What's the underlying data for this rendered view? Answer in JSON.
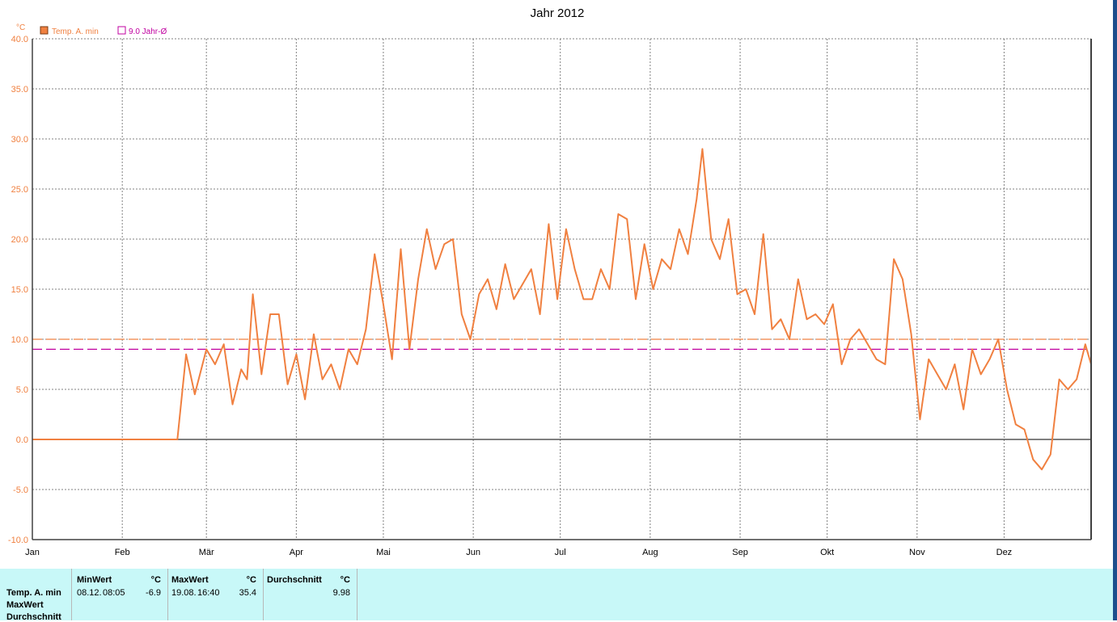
{
  "chart_data": {
    "type": "line",
    "title": "Jahr 2012",
    "ylabel": "°C",
    "ylim": [
      -10,
      40
    ],
    "yticks": [
      "-10.0",
      "-5.0",
      "0.0",
      "5.0",
      "10.0",
      "15.0",
      "20.0",
      "25.0",
      "30.0",
      "35.0",
      "40.0"
    ],
    "xlim": [
      "2012-01-01",
      "2012-12-31"
    ],
    "xticks": [
      "Jan",
      "Feb",
      "Mär",
      "Apr",
      "Mai",
      "Jun",
      "Jul",
      "Aug",
      "Sep",
      "Okt",
      "Nov",
      "Dez"
    ],
    "grid": true,
    "legend_position": "top-left",
    "legend": [
      {
        "label": "Temp. A. min",
        "color": "#f08040"
      },
      {
        "label": "9.0 Jahr-Ø",
        "color": "#c000a0"
      }
    ],
    "reference_lines": [
      {
        "value": 10.0,
        "color": "#f08040",
        "style": "dashed"
      },
      {
        "value": 9.0,
        "color": "#c000a0",
        "style": "dashed"
      }
    ],
    "series": [
      {
        "name": "Temp. A. min",
        "color": "#f08040",
        "x": [
          "2012-01-01",
          "2012-02-01",
          "2012-02-20",
          "2012-02-23",
          "2012-02-26",
          "2012-03-01",
          "2012-03-04",
          "2012-03-07",
          "2012-03-10",
          "2012-03-13",
          "2012-03-15",
          "2012-03-17",
          "2012-03-20",
          "2012-03-23",
          "2012-03-26",
          "2012-03-29",
          "2012-04-01",
          "2012-04-04",
          "2012-04-07",
          "2012-04-10",
          "2012-04-13",
          "2012-04-16",
          "2012-04-19",
          "2012-04-22",
          "2012-04-25",
          "2012-04-28",
          "2012-05-01",
          "2012-05-04",
          "2012-05-07",
          "2012-05-10",
          "2012-05-13",
          "2012-05-16",
          "2012-05-19",
          "2012-05-22",
          "2012-05-25",
          "2012-05-28",
          "2012-05-31",
          "2012-06-03",
          "2012-06-06",
          "2012-06-09",
          "2012-06-12",
          "2012-06-15",
          "2012-06-18",
          "2012-06-21",
          "2012-06-24",
          "2012-06-27",
          "2012-06-30",
          "2012-07-03",
          "2012-07-06",
          "2012-07-09",
          "2012-07-12",
          "2012-07-15",
          "2012-07-18",
          "2012-07-21",
          "2012-07-24",
          "2012-07-27",
          "2012-07-30",
          "2012-08-02",
          "2012-08-05",
          "2012-08-08",
          "2012-08-11",
          "2012-08-14",
          "2012-08-17",
          "2012-08-19",
          "2012-08-22",
          "2012-08-25",
          "2012-08-28",
          "2012-08-31",
          "2012-09-03",
          "2012-09-06",
          "2012-09-09",
          "2012-09-12",
          "2012-09-15",
          "2012-09-18",
          "2012-09-21",
          "2012-09-24",
          "2012-09-27",
          "2012-09-30",
          "2012-10-03",
          "2012-10-06",
          "2012-10-09",
          "2012-10-12",
          "2012-10-15",
          "2012-10-18",
          "2012-10-21",
          "2012-10-24",
          "2012-10-27",
          "2012-10-30",
          "2012-11-02",
          "2012-11-05",
          "2012-11-08",
          "2012-11-11",
          "2012-11-14",
          "2012-11-17",
          "2012-11-20",
          "2012-11-23",
          "2012-11-26",
          "2012-11-29",
          "2012-12-02",
          "2012-12-05",
          "2012-12-08",
          "2012-12-11",
          "2012-12-14",
          "2012-12-17",
          "2012-12-20",
          "2012-12-23",
          "2012-12-26",
          "2012-12-29",
          "2012-12-31"
        ],
        "values": [
          0,
          0,
          0,
          8.5,
          4.5,
          9,
          7.5,
          9.5,
          3.5,
          7,
          6,
          14.5,
          6.5,
          12.5,
          12.5,
          5.5,
          8.5,
          4,
          10.5,
          6,
          7.5,
          5,
          9,
          7.5,
          11,
          18.5,
          13.5,
          8,
          19,
          9,
          16,
          21,
          17,
          19.5,
          20,
          12.5,
          10,
          14.5,
          16,
          13,
          17.5,
          14,
          15.5,
          17,
          12.5,
          21.5,
          14,
          21,
          17,
          14,
          14,
          17,
          15,
          22.5,
          22,
          14,
          19.5,
          15,
          18,
          17,
          21,
          18.5,
          24,
          29,
          20,
          18,
          22,
          14.5,
          15,
          12.5,
          20.5,
          11,
          12,
          10,
          16,
          12,
          12.5,
          11.5,
          13.5,
          7.5,
          10,
          11,
          9.5,
          8,
          7.5,
          18,
          16,
          10.5,
          2,
          8,
          6.5,
          5,
          7.5,
          3,
          9,
          6.5,
          8,
          10,
          5,
          1.5,
          1,
          -2,
          -3,
          -1.5,
          6,
          5,
          6,
          9.5,
          7.5
        ]
      }
    ]
  },
  "stats_panel": {
    "rows": [
      "Temp. A. min",
      "MaxWert",
      "Durchschnitt"
    ],
    "columns": [
      {
        "header": "MinWert",
        "unit": "°C",
        "date": "08.12.",
        "time": "08:05",
        "value": "-6.9"
      },
      {
        "header": "MaxWert",
        "unit": "°C",
        "date": "19.08.",
        "time": "16:40",
        "value": "35.4"
      },
      {
        "header": "Durchschnitt",
        "unit": "°C",
        "date": "",
        "time": "",
        "value": "9.98"
      }
    ]
  }
}
